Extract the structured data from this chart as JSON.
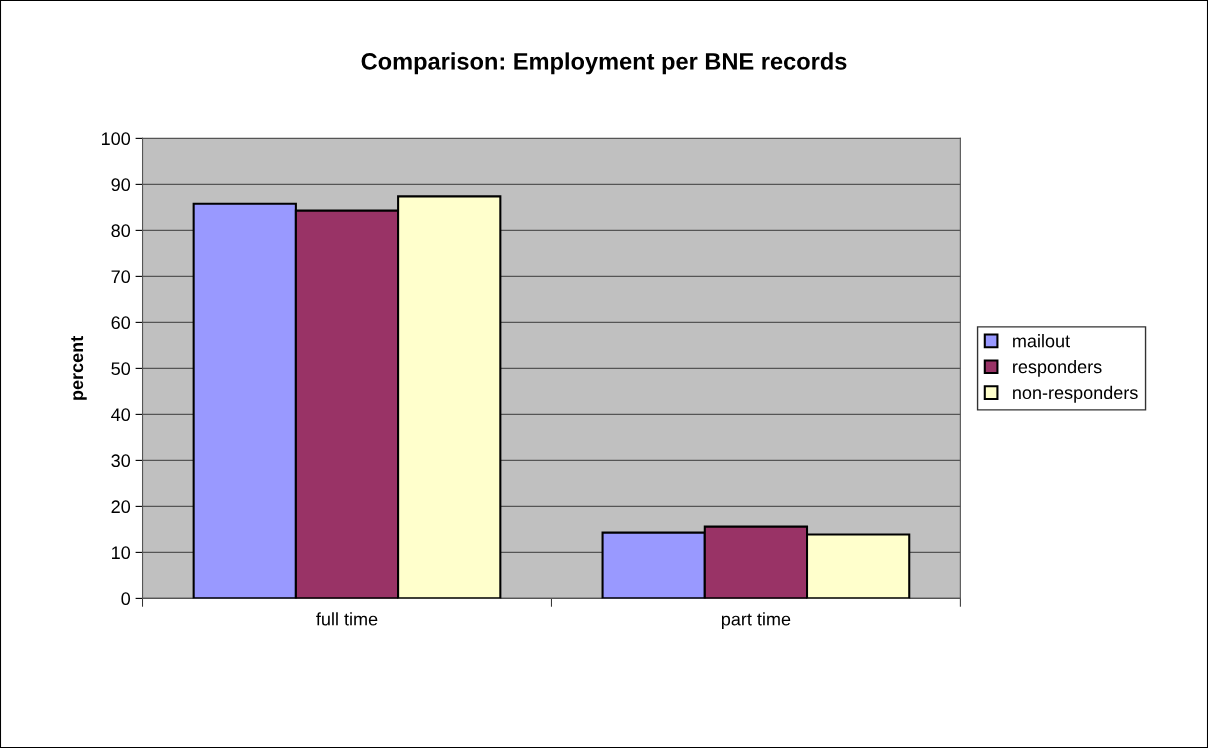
{
  "chart_data": {
    "type": "bar",
    "title": "Comparison: Employment per BNE records",
    "ylabel": "percent",
    "categories": [
      "full time",
      "part time"
    ],
    "series": [
      {
        "name": "mailout",
        "color": "#9999ff",
        "values": [
          85.8,
          14.3
        ]
      },
      {
        "name": "responders",
        "color": "#993366",
        "values": [
          84.3,
          15.6
        ]
      },
      {
        "name": "non-responders",
        "color": "#ffffcc",
        "values": [
          87.4,
          13.9
        ]
      }
    ],
    "ylim": [
      0,
      100
    ],
    "yticks": [
      0,
      10,
      20,
      30,
      40,
      50,
      60,
      70,
      80,
      90,
      100
    ],
    "grid": "y",
    "legend": "right"
  }
}
